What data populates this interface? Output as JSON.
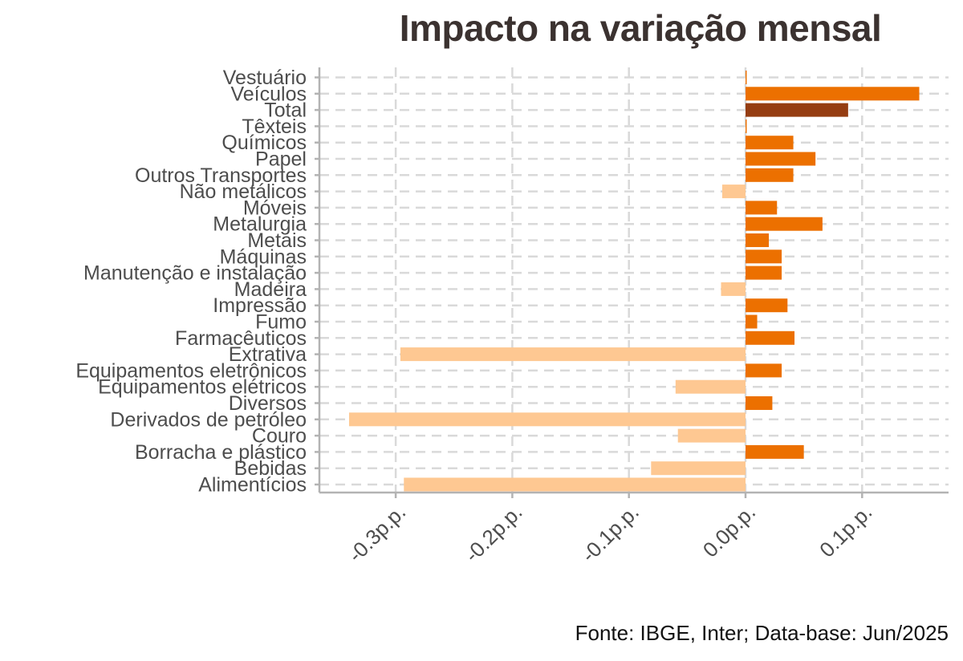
{
  "chart_data": {
    "type": "bar",
    "orientation": "horizontal",
    "title": "Impacto na variação mensal",
    "caption": "Fonte: IBGE, Inter; Data-base: Jun/2025",
    "xlabel": "",
    "ylabel": "",
    "xlim": [
      -0.365,
      0.172
    ],
    "x_ticks": [
      -0.3,
      -0.2,
      -0.1,
      0.0,
      0.1
    ],
    "x_tick_labels": [
      "-0.3p.p.",
      "-0.2p.p.",
      "-0.1p.p.",
      "0.0p.p.",
      "0.1p.p."
    ],
    "grid": true,
    "colors": {
      "positive": "#ec7000",
      "negative": "#fec892",
      "total": "#953d12",
      "text": "#4d4d4d",
      "title": "#3b3230",
      "grid": "#d9d9d9",
      "axis": "#b3b3b3"
    },
    "categories": [
      "Vestuário",
      "Veículos",
      "Total",
      "Têxteis",
      "Químicos",
      "Papel",
      "Outros Transportes",
      "Não metálicos",
      "Móveis",
      "Metalurgia",
      "Metais",
      "Máquinas",
      "Manutenção e instalação",
      "Madeira",
      "Impressão",
      "Fumo",
      "Farmacêuticos",
      "Extrativa",
      "Equipamentos eletrônicos",
      "Equipamentos elétricos",
      "Diversos",
      "Derivados de petróleo",
      "Couro",
      "Borracha e plástico",
      "Bebidas",
      "Alimentícios"
    ],
    "values": [
      0.001,
      0.149,
      0.088,
      0.001,
      0.041,
      0.06,
      0.041,
      -0.02,
      0.027,
      0.066,
      0.02,
      0.031,
      0.031,
      -0.021,
      0.036,
      0.01,
      0.042,
      -0.296,
      0.031,
      -0.06,
      0.023,
      -0.34,
      -0.058,
      0.05,
      -0.081,
      -0.293
    ],
    "highlight": "Total"
  }
}
